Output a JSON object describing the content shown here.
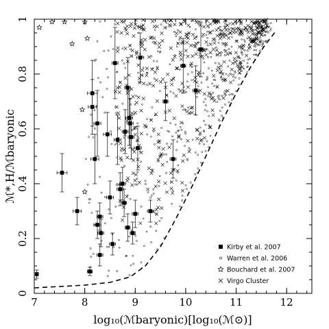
{
  "chart_data": {
    "type": "scatter",
    "xlabel": "log₁₀(ℳbaryonic)[log₁₀(ℳ⊙)]",
    "ylabel": "ℳ*,H/ℳbaryonic",
    "xlim": [
      7,
      12.5
    ],
    "ylim": [
      0,
      1
    ],
    "x_ticks": [
      "7",
      "8",
      "9",
      "10",
      "11",
      "12"
    ],
    "y_ticks": [
      "0",
      "0.2",
      "0.4",
      "0.6",
      "0.8",
      "1"
    ],
    "legend_position": "bottom-right",
    "grid": false,
    "series": [
      {
        "name": "Kirby et al. 2007",
        "marker": "filled-square",
        "points": [
          {
            "x": 7.05,
            "y": 0.07,
            "yerr": 0.015
          },
          {
            "x": 7.55,
            "y": 0.44,
            "yerr": 0.07,
            "xerr": 0.1
          },
          {
            "x": 7.85,
            "y": 0.3,
            "yerr": 0.05,
            "xerr": 0.08
          },
          {
            "x": 8.1,
            "y": 0.08,
            "yerr": 0.015,
            "xerr": 0.05
          },
          {
            "x": 8.15,
            "y": 0.73,
            "yerr": 0.12,
            "xerr": 0.1
          },
          {
            "x": 8.15,
            "y": 0.68,
            "yerr": 0.1,
            "xerr": 0.08
          },
          {
            "x": 8.2,
            "y": 0.49,
            "yerr": 0.09,
            "xerr": 0.08
          },
          {
            "x": 8.25,
            "y": 0.62,
            "yerr": 0.12,
            "xerr": 0.07
          },
          {
            "x": 8.25,
            "y": 0.25,
            "yerr": 0.05,
            "xerr": 0.07
          },
          {
            "x": 8.3,
            "y": 0.14,
            "yerr": 0.04,
            "xerr": 0.06
          },
          {
            "x": 8.3,
            "y": 0.28,
            "yerr": 0.05,
            "xerr": 0.06
          },
          {
            "x": 8.32,
            "y": 0.22,
            "yerr": 0.05,
            "xerr": 0.06
          },
          {
            "x": 8.45,
            "y": 0.58,
            "yerr": 0.08,
            "xerr": 0.08
          },
          {
            "x": 8.5,
            "y": 0.35,
            "yerr": 0.06,
            "xerr": 0.07
          },
          {
            "x": 8.55,
            "y": 0.18,
            "yerr": 0.04,
            "xerr": 0.06
          },
          {
            "x": 8.6,
            "y": 0.84,
            "yerr": 0.13,
            "xerr": 0.06
          },
          {
            "x": 8.65,
            "y": 0.56,
            "yerr": 0.09,
            "xerr": 0.07
          },
          {
            "x": 8.7,
            "y": 0.38,
            "yerr": 0.06,
            "xerr": 0.06
          },
          {
            "x": 8.75,
            "y": 0.4,
            "yerr": 0.06,
            "xerr": 0.06
          },
          {
            "x": 8.78,
            "y": 0.33,
            "yerr": 0.05,
            "xerr": 0.05
          },
          {
            "x": 8.8,
            "y": 0.59,
            "yerr": 0.08,
            "xerr": 0.06
          },
          {
            "x": 8.85,
            "y": 0.75,
            "yerr": 0.11,
            "xerr": 0.06
          },
          {
            "x": 8.85,
            "y": 0.24,
            "yerr": 0.05,
            "xerr": 0.05
          },
          {
            "x": 8.88,
            "y": 0.64,
            "yerr": 0.1,
            "xerr": 0.07
          },
          {
            "x": 8.9,
            "y": 0.62,
            "yerr": 0.09,
            "xerr": 0.06
          },
          {
            "x": 8.92,
            "y": 0.57,
            "yerr": 0.08,
            "xerr": 0.06
          },
          {
            "x": 8.95,
            "y": 0.22,
            "yerr": 0.04,
            "xerr": 0.05
          },
          {
            "x": 9.0,
            "y": 0.29,
            "yerr": 0.05,
            "xerr": 0.06
          },
          {
            "x": 9.05,
            "y": 0.53,
            "yerr": 0.08,
            "xerr": 0.07
          },
          {
            "x": 9.1,
            "y": 0.86,
            "yerr": 0.09,
            "xerr": 0.07
          },
          {
            "x": 9.3,
            "y": 0.3,
            "yerr": 0.04,
            "xerr": 0.06
          },
          {
            "x": 9.6,
            "y": 0.7,
            "yerr": 0.07,
            "xerr": 0.05
          },
          {
            "x": 9.75,
            "y": 0.49,
            "yerr": 0.07,
            "xerr": 0.06
          },
          {
            "x": 9.95,
            "y": 0.83,
            "yerr": 0.1,
            "xerr": 0.05
          },
          {
            "x": 10.2,
            "y": 0.74,
            "yerr": 0.09,
            "xerr": 0.06
          },
          {
            "x": 10.3,
            "y": 0.89,
            "yerr": 0.1,
            "xerr": 0.05
          }
        ]
      },
      {
        "name": "Warren et al. 2006",
        "marker": "open-circle",
        "points": []
      },
      {
        "name": "Bouchard et al. 2007",
        "marker": "open-star",
        "points": [
          {
            "x": 7.1,
            "y": 0.97
          },
          {
            "x": 7.35,
            "y": 0.99
          },
          {
            "x": 7.75,
            "y": 0.91
          },
          {
            "x": 7.95,
            "y": 0.67
          },
          {
            "x": 8.0,
            "y": 0.37
          },
          {
            "x": 8.05,
            "y": 0.93
          },
          {
            "x": 7.6,
            "y": 0.99
          },
          {
            "x": 8.0,
            "y": 0.99
          }
        ]
      },
      {
        "name": "Virgo Cluster",
        "marker": "cross",
        "points": []
      }
    ],
    "dashed_curve": {
      "points": [
        {
          "x": 7.0,
          "y": 0.02
        },
        {
          "x": 7.5,
          "y": 0.025
        },
        {
          "x": 8.0,
          "y": 0.03
        },
        {
          "x": 8.5,
          "y": 0.04
        },
        {
          "x": 8.9,
          "y": 0.06
        },
        {
          "x": 9.2,
          "y": 0.1
        },
        {
          "x": 9.5,
          "y": 0.17
        },
        {
          "x": 9.8,
          "y": 0.27
        },
        {
          "x": 10.1,
          "y": 0.38
        },
        {
          "x": 10.4,
          "y": 0.5
        },
        {
          "x": 10.7,
          "y": 0.62
        },
        {
          "x": 11.0,
          "y": 0.73
        },
        {
          "x": 11.3,
          "y": 0.83
        },
        {
          "x": 11.55,
          "y": 0.9
        },
        {
          "x": 11.8,
          "y": 0.96
        }
      ]
    }
  }
}
